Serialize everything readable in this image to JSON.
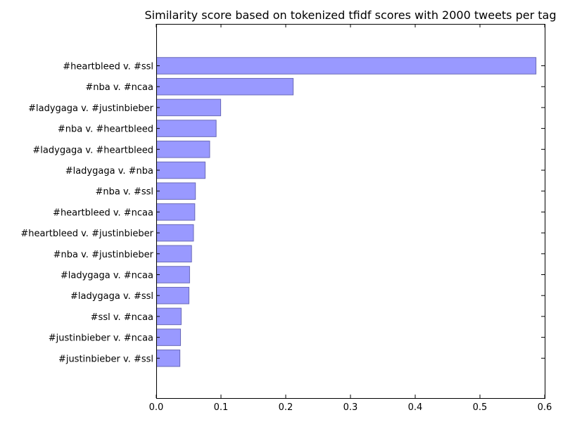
{
  "chart_data": {
    "type": "bar",
    "orientation": "horizontal",
    "title": "Similarity score based on tokenized tfidf scores with 2000 tweets per tag",
    "xlabel": "",
    "ylabel": "",
    "xlim": [
      0,
      0.6
    ],
    "xticks": [
      "0.0",
      "0.1",
      "0.2",
      "0.3",
      "0.4",
      "0.5",
      "0.6"
    ],
    "grid": false,
    "bar_color": "#9999ff",
    "bar_edge_color": "#6a6ab8",
    "categories": [
      "#heartbleed v. #ssl",
      "#nba v. #ncaa",
      "#ladygaga v. #justinbieber",
      "#nba v. #heartbleed",
      "#ladygaga v. #heartbleed",
      "#ladygaga v. #nba",
      "#nba v. #ssl",
      "#heartbleed v. #ncaa",
      "#heartbleed v. #justinbieber",
      "#nba v. #justinbieber",
      "#ladygaga v. #ncaa",
      "#ladygaga v. #ssl",
      "#ssl v. #ncaa",
      "#justinbieber v. #ncaa",
      "#justinbieber v. #ssl"
    ],
    "values": [
      0.586,
      0.211,
      0.099,
      0.092,
      0.082,
      0.075,
      0.06,
      0.059,
      0.057,
      0.054,
      0.051,
      0.05,
      0.038,
      0.037,
      0.036
    ]
  }
}
